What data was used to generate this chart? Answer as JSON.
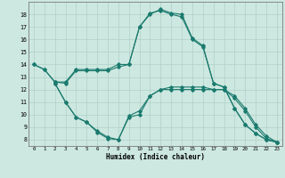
{
  "xlabel": "Humidex (Indice chaleur)",
  "ylabel": "",
  "background_color": "#cde8e0",
  "grid_color": "#b0d0c8",
  "line_color": "#1a7a6e",
  "xlim": [
    -0.5,
    23.5
  ],
  "ylim": [
    7.5,
    19.0
  ],
  "yticks": [
    8,
    9,
    10,
    11,
    12,
    13,
    14,
    15,
    16,
    17,
    18
  ],
  "xticks": [
    0,
    1,
    2,
    3,
    4,
    5,
    6,
    7,
    8,
    9,
    10,
    11,
    12,
    13,
    14,
    15,
    16,
    17,
    18,
    19,
    20,
    21,
    22,
    23
  ],
  "line1_x": [
    0,
    1,
    2,
    3,
    4,
    5,
    6,
    7,
    8,
    9,
    10,
    11,
    12,
    13,
    14,
    15,
    16,
    17,
    18,
    19,
    20,
    21,
    22,
    23
  ],
  "line1_y": [
    14,
    13.6,
    12.6,
    12.6,
    13.6,
    13.6,
    13.6,
    13.6,
    14.0,
    14.0,
    17.0,
    18.0,
    18.4,
    18.1,
    18.0,
    16.1,
    15.5,
    12.5,
    12.2,
    10.5,
    9.2,
    8.5,
    8.0,
    7.8
  ],
  "line2_x": [
    0,
    1,
    2,
    3,
    4,
    5,
    6,
    7,
    8,
    9,
    10,
    11,
    12,
    13,
    14,
    15,
    16,
    17,
    18,
    19,
    20,
    21,
    22,
    23
  ],
  "line2_y": [
    14.0,
    13.6,
    12.6,
    12.5,
    13.5,
    13.5,
    13.5,
    13.5,
    13.8,
    14.0,
    17.0,
    18.1,
    18.3,
    18.0,
    17.8,
    16.0,
    15.4,
    12.5,
    12.2,
    10.5,
    9.2,
    8.5,
    8.0,
    7.8
  ],
  "line3_x": [
    2,
    3,
    4,
    5,
    6,
    7,
    8,
    9,
    10,
    11,
    12,
    13,
    14,
    15,
    16,
    17,
    18,
    19,
    20,
    21,
    22,
    23
  ],
  "line3_y": [
    12.5,
    11.0,
    9.8,
    9.4,
    8.7,
    8.2,
    8.0,
    9.9,
    10.3,
    11.5,
    12.0,
    12.2,
    12.2,
    12.2,
    12.2,
    12.0,
    12.0,
    11.5,
    10.5,
    9.2,
    8.3,
    7.8
  ],
  "line4_x": [
    2,
    3,
    4,
    5,
    6,
    7,
    8,
    9,
    10,
    11,
    12,
    13,
    14,
    15,
    16,
    17,
    18,
    19,
    20,
    21,
    22,
    23
  ],
  "line4_y": [
    12.5,
    11.0,
    9.8,
    9.4,
    8.6,
    8.1,
    8.0,
    9.8,
    10.0,
    11.5,
    12.0,
    12.0,
    12.0,
    12.0,
    12.0,
    12.0,
    12.0,
    11.3,
    10.3,
    9.0,
    8.1,
    7.8
  ]
}
